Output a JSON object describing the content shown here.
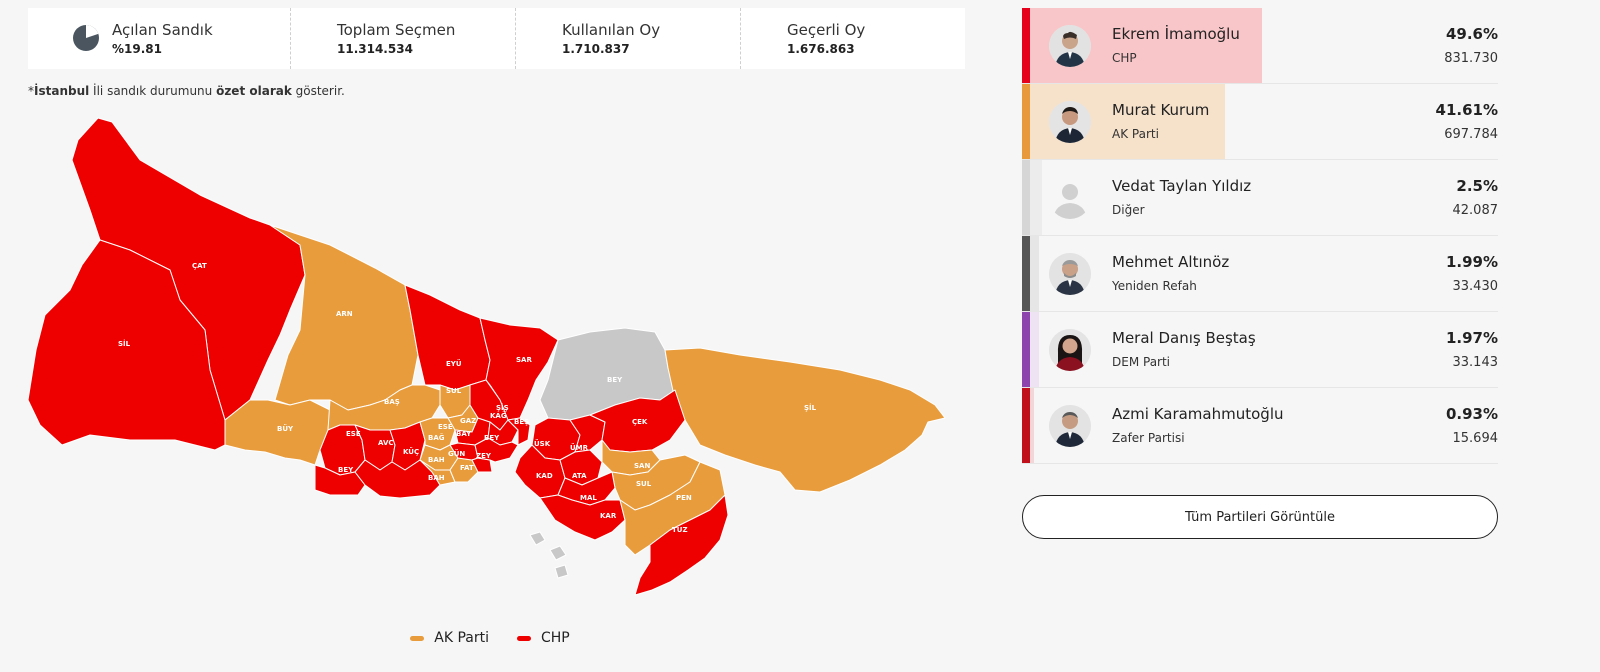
{
  "stats": [
    {
      "label": "Açılan Sandık",
      "value": "%19.81",
      "icon": "pie-chart-icon"
    },
    {
      "label": "Toplam Seçmen",
      "value": "11.314.534"
    },
    {
      "label": "Kullanılan Oy",
      "value": "1.710.837"
    },
    {
      "label": "Geçerli Oy",
      "value": "1.676.863"
    }
  ],
  "opened_ratio": 0.1981,
  "note": {
    "prefix": "*",
    "bold1": "İstanbul",
    "mid1": " İli sandık durumunu ",
    "bold2": "özet olarak",
    "suffix": " gösterir."
  },
  "districts": [
    {
      "code": "ÇAT",
      "party": "CHP"
    },
    {
      "code": "SİL",
      "party": "CHP"
    },
    {
      "code": "ARN",
      "party": "AK Parti"
    },
    {
      "code": "EYÜ",
      "party": "CHP"
    },
    {
      "code": "SAR",
      "party": "CHP"
    },
    {
      "code": "BEY",
      "party": "Diğer"
    },
    {
      "code": "ŞİL",
      "party": "AK Parti"
    },
    {
      "code": "BÜY",
      "party": "AK Parti"
    },
    {
      "code": "BAŞ",
      "party": "AK Parti"
    },
    {
      "code": "SUL",
      "party": "AK Parti"
    },
    {
      "code": "ESE",
      "party": "CHP"
    },
    {
      "code": "AVC",
      "party": "CHP"
    },
    {
      "code": "KÜÇ",
      "party": "CHP"
    },
    {
      "code": "BEY",
      "party": "CHP"
    },
    {
      "code": "BAH",
      "party": "CHP"
    },
    {
      "code": "ÇEK",
      "party": "CHP"
    },
    {
      "code": "ÜSK",
      "party": "CHP"
    },
    {
      "code": "ÜMR",
      "party": "CHP"
    },
    {
      "code": "KAD",
      "party": "CHP"
    },
    {
      "code": "ATA",
      "party": "CHP"
    },
    {
      "code": "SAN",
      "party": "AK Parti"
    },
    {
      "code": "SUL",
      "party": "AK Parti"
    },
    {
      "code": "MAL",
      "party": "CHP"
    },
    {
      "code": "KAR",
      "party": "CHP"
    },
    {
      "code": "PEN",
      "party": "AK Parti"
    },
    {
      "code": "TUZ",
      "party": "CHP"
    },
    {
      "code": "ŞİŞ",
      "party": "CHP"
    },
    {
      "code": "KAĞ",
      "party": "CHP"
    },
    {
      "code": "BEŞ",
      "party": "CHP"
    },
    {
      "code": "BEY",
      "party": "CHP"
    },
    {
      "code": "ESE",
      "party": "AK Parti"
    },
    {
      "code": "BAY",
      "party": "CHP"
    },
    {
      "code": "GAZ",
      "party": "CHP"
    },
    {
      "code": "BAĞ",
      "party": "AK Parti"
    },
    {
      "code": "GÜN",
      "party": "AK Parti"
    },
    {
      "code": "ZEY",
      "party": "CHP"
    },
    {
      "code": "FAT",
      "party": "AK Parti"
    },
    {
      "code": "BAH",
      "party": "AK Parti"
    }
  ],
  "legend": [
    {
      "label": "AK Parti",
      "color": "#e89c3c"
    },
    {
      "label": "CHP",
      "color": "#ef0000"
    }
  ],
  "colors": {
    "chp": "#ef0000",
    "akp": "#e89c3c",
    "other": "#c8c8c8",
    "chp_fill": "#f8c8c8",
    "akp_fill": "#f6e3cb"
  },
  "candidates": [
    {
      "name": "Ekrem İmamoğlu",
      "party": "CHP",
      "percent": "49.6%",
      "share": 49.6,
      "votes": "831.730",
      "accent": "#e5001b",
      "fill": "#f8c6c8",
      "avatar": "person-photo-icon"
    },
    {
      "name": "Murat Kurum",
      "party": "AK Parti",
      "percent": "41.61%",
      "share": 41.61,
      "votes": "697.784",
      "accent": "#e8993c",
      "fill": "#f6e2cb",
      "avatar": "person-photo-icon"
    },
    {
      "name": "Vedat Taylan Yıldız",
      "party": "Diğer",
      "percent": "2.5%",
      "share": 2.5,
      "votes": "42.087",
      "accent": "#d6d6d6",
      "fill": "#ececec",
      "avatar": "default-user-icon"
    },
    {
      "name": "Mehmet Altınöz",
      "party": "Yeniden Refah",
      "percent": "1.99%",
      "share": 1.99,
      "votes": "33.430",
      "accent": "#555555",
      "fill": "#e6e6e6",
      "avatar": "person-photo-icon"
    },
    {
      "name": "Meral Danış Beştaş",
      "party": "DEM Parti",
      "percent": "1.97%",
      "share": 1.97,
      "votes": "33.143",
      "accent": "#8e44ad",
      "fill": "#eee3f3",
      "avatar": "person-photo-icon"
    },
    {
      "name": "Azmi Karamahmutoğlu",
      "party": "Zafer Partisi",
      "percent": "0.93%",
      "share": 0.93,
      "votes": "15.694",
      "accent": "#c0101b",
      "fill": "#f3d6d8",
      "avatar": "person-photo-icon"
    }
  ],
  "all_parties_button": "Tüm Partileri Görüntüle"
}
